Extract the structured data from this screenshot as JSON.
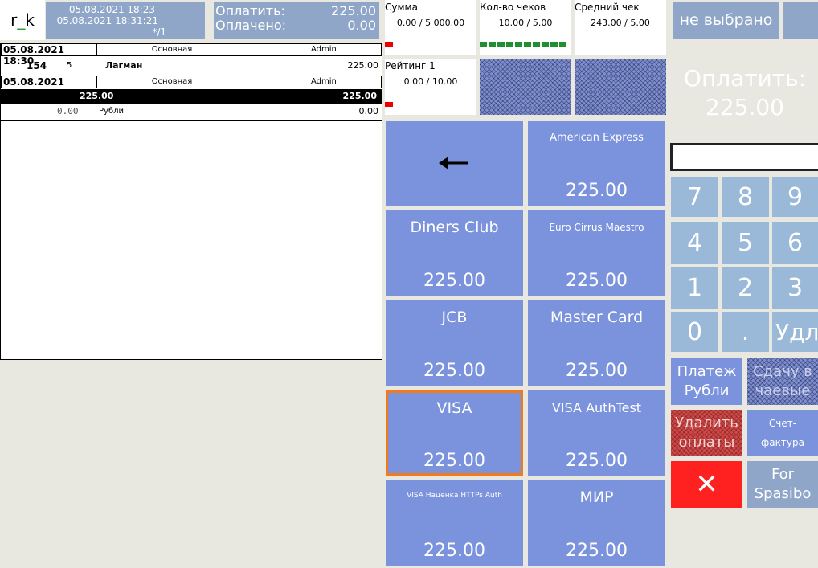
{
  "user": {
    "prefix": "r",
    "sep": "_",
    "suffix": "k"
  },
  "dates": {
    "line1": "05.08.2021 18:23",
    "line2": "05.08.2021 18:31:21",
    "line3": "*/1"
  },
  "payment_summary": {
    "to_pay_label": "Оплатить:",
    "to_pay_value": "225.00",
    "paid_label": "Оплачено:",
    "paid_value": "0.00"
  },
  "receipt": {
    "header1": {
      "datetime": "05.08.2021 18:30",
      "hall": "Основная",
      "user": "Admin"
    },
    "item": {
      "code": "154",
      "qty": "5",
      "name": "Лагман",
      "price": "225.00"
    },
    "header2": {
      "datetime": "05.08.2021 18:30",
      "hall": "Основная",
      "user": "Admin"
    },
    "selected": {
      "amount": "225.00",
      "total": "225.00"
    },
    "currency_row": {
      "amount": "0.00",
      "currency": "Рубли",
      "value": "0.00"
    }
  },
  "metrics": [
    {
      "name": "Сумма",
      "value": "0.00 / 5 000.00"
    },
    {
      "name": "Кол-во чеков",
      "value": "10.00 / 5.00"
    },
    {
      "name": "Средний чек",
      "value": "243.00 / 5.00"
    },
    {
      "name": "Рейтинг 1",
      "value": "0.00 / 10.00"
    }
  ],
  "payment_methods": [
    {
      "name": "American Express",
      "amount": "225.00"
    },
    {
      "name": "Diners Club",
      "amount": "225.00"
    },
    {
      "name": "Euro Cirrus Maestro",
      "amount": "225.00"
    },
    {
      "name": "JCB",
      "amount": "225.00"
    },
    {
      "name": "Master Card",
      "amount": "225.00"
    },
    {
      "name": "VISA",
      "amount": "225.00"
    },
    {
      "name": "VISA AuthTest",
      "amount": "225.00"
    },
    {
      "name": "VISA Наценка HTTPs Auth",
      "amount": "225.00"
    },
    {
      "name": "МИР",
      "amount": "225.00"
    }
  ],
  "right_panel": {
    "not_selected": "не выбрано",
    "to_pay_label": "Оплатить:",
    "to_pay_value": "225.00",
    "keys": [
      "7",
      "8",
      "9",
      "4",
      "5",
      "6",
      "1",
      "2",
      "3",
      "0",
      ".",
      "Удл"
    ],
    "pay_rub": "Платеж Рубли",
    "change_tips": "Сдачу в чаевые",
    "delete_payments": "Удалить оплаты",
    "invoice": "Счет-фактура",
    "cancel": "✕",
    "spasibo": "For Spasibo"
  },
  "colors": {
    "card": "#7b92dc",
    "selected_border": "#f07a1c",
    "cancel": "#ff2020",
    "delete": "#d04040"
  }
}
